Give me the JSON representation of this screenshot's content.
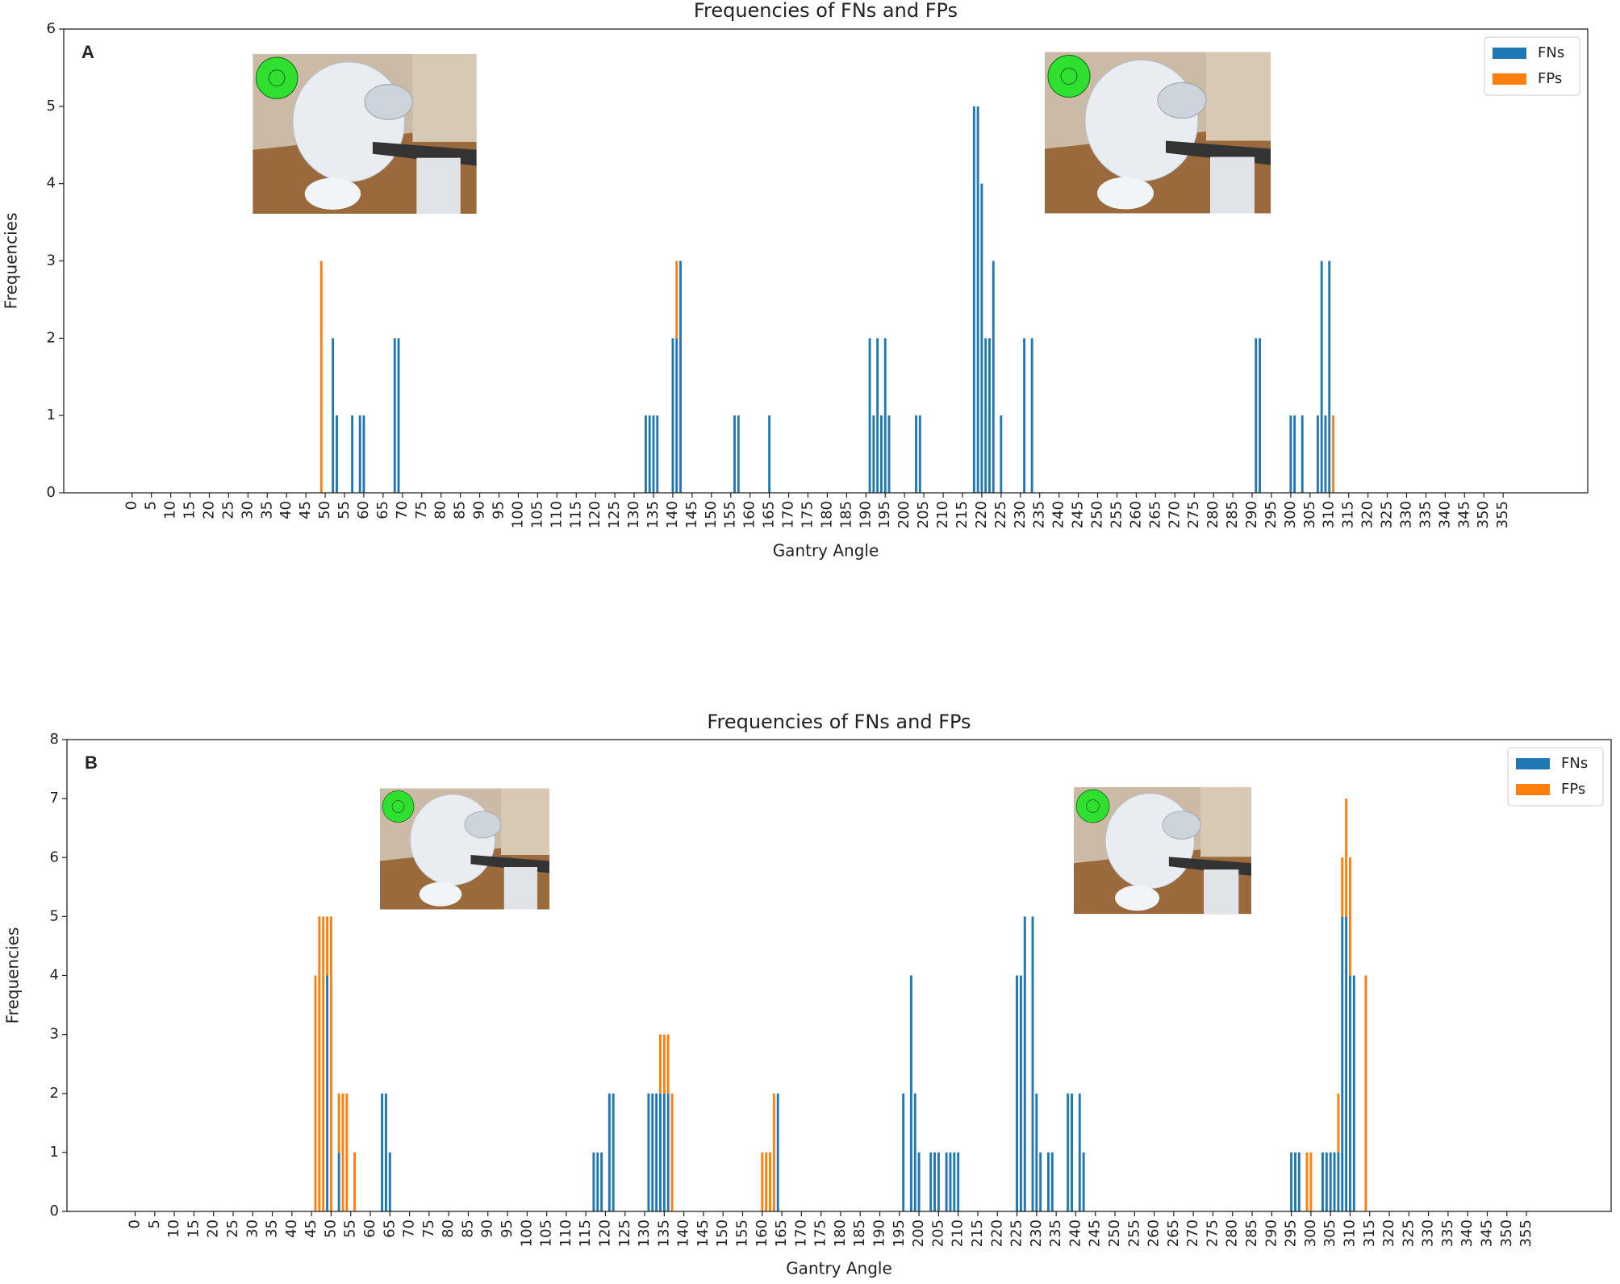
{
  "chart_data": [
    {
      "type": "bar",
      "stacked": true,
      "title": "Frequencies of FNs and FPs",
      "panel_label": "A",
      "xlabel": "Gantry Angle",
      "ylabel": "Frequencies",
      "legend": "upper right",
      "x": [
        49,
        52,
        53,
        57,
        59,
        60,
        68,
        69,
        133,
        134,
        135,
        136,
        140,
        141,
        142,
        156,
        157,
        165,
        191,
        192,
        193,
        194,
        195,
        196,
        203,
        204,
        218,
        219,
        220,
        221,
        222,
        223,
        225,
        231,
        233,
        291,
        292,
        300,
        301,
        303,
        307,
        308,
        309,
        310,
        311
      ],
      "series": [
        {
          "name": "FNs",
          "color": "#1f77b4",
          "values": [
            0,
            2,
            1,
            1,
            1,
            1,
            2,
            2,
            1,
            1,
            1,
            1,
            2,
            2,
            3,
            1,
            1,
            1,
            2,
            1,
            2,
            1,
            2,
            1,
            1,
            1,
            5,
            5,
            4,
            2,
            2,
            3,
            1,
            2,
            2,
            2,
            2,
            1,
            1,
            1,
            1,
            3,
            1,
            3,
            0
          ]
        },
        {
          "name": "FPs",
          "color": "#ff7f0e",
          "values": [
            3,
            0,
            0,
            0,
            0,
            0,
            0,
            0,
            0,
            0,
            0,
            0,
            0,
            1,
            0,
            0,
            0,
            0,
            0,
            0,
            0,
            0,
            0,
            0,
            0,
            0,
            0,
            0,
            0,
            0,
            0,
            0,
            0,
            0,
            0,
            0,
            0,
            0,
            0,
            0,
            0,
            0,
            0,
            0,
            1
          ]
        }
      ],
      "xlim": [
        -17.7,
        376.9
      ],
      "ylim": [
        0,
        6
      ],
      "yticks": [
        0,
        1,
        2,
        3,
        4,
        5,
        6
      ],
      "xticks": [
        0,
        5,
        10,
        15,
        20,
        25,
        30,
        35,
        40,
        45,
        50,
        55,
        60,
        65,
        70,
        75,
        80,
        85,
        90,
        95,
        100,
        105,
        110,
        115,
        120,
        125,
        130,
        135,
        140,
        145,
        150,
        155,
        160,
        165,
        170,
        175,
        180,
        185,
        190,
        195,
        200,
        205,
        210,
        215,
        220,
        225,
        230,
        235,
        240,
        245,
        250,
        255,
        260,
        265,
        270,
        275,
        280,
        285,
        290,
        295,
        300,
        305,
        310,
        315,
        320,
        325,
        330,
        335,
        340,
        345,
        350,
        355
      ]
    },
    {
      "type": "bar",
      "stacked": true,
      "title": "Frequencies of FNs and FPs",
      "panel_label": "B",
      "xlabel": "Gantry Angle",
      "ylabel": "Frequencies",
      "legend": "upper right",
      "x": [
        46,
        47,
        48,
        49,
        50,
        52,
        53,
        54,
        56,
        63,
        64,
        65,
        117,
        118,
        119,
        121,
        122,
        131,
        132,
        133,
        134,
        135,
        136,
        137,
        160,
        161,
        162,
        163,
        164,
        196,
        198,
        199,
        200,
        203,
        204,
        205,
        207,
        208,
        209,
        210,
        225,
        226,
        227,
        229,
        230,
        231,
        233,
        234,
        238,
        239,
        241,
        242,
        295,
        296,
        297,
        299,
        300,
        303,
        304,
        305,
        306,
        307,
        308,
        309,
        310,
        311,
        314
      ],
      "series": [
        {
          "name": "FNs",
          "color": "#1f77b4",
          "values": [
            0,
            0,
            0,
            4,
            0,
            1,
            0,
            0,
            0,
            2,
            2,
            1,
            1,
            1,
            1,
            2,
            2,
            2,
            2,
            2,
            2,
            2,
            2,
            0,
            0,
            0,
            0,
            0,
            2,
            2,
            4,
            2,
            1,
            1,
            1,
            1,
            1,
            1,
            1,
            1,
            4,
            4,
            5,
            5,
            2,
            1,
            1,
            1,
            2,
            2,
            2,
            1,
            1,
            1,
            1,
            0,
            0,
            1,
            1,
            1,
            1,
            1,
            5,
            5,
            4,
            4,
            0
          ]
        },
        {
          "name": "FPs",
          "color": "#ff7f0e",
          "values": [
            4,
            5,
            5,
            1,
            5,
            1,
            2,
            2,
            1,
            0,
            0,
            0,
            0,
            0,
            0,
            0,
            0,
            0,
            0,
            0,
            1,
            1,
            1,
            2,
            1,
            1,
            1,
            2,
            0,
            0,
            0,
            0,
            0,
            0,
            0,
            0,
            0,
            0,
            0,
            0,
            0,
            0,
            0,
            0,
            0,
            0,
            0,
            0,
            0,
            0,
            0,
            0,
            0,
            0,
            0,
            1,
            1,
            0,
            0,
            0,
            0,
            1,
            1,
            2,
            2,
            0,
            4
          ]
        }
      ],
      "xlim": [
        -17.4,
        376.6
      ],
      "ylim": [
        0,
        8
      ],
      "yticks": [
        0,
        1,
        2,
        3,
        4,
        5,
        6,
        7,
        8
      ],
      "xticks": [
        0,
        5,
        10,
        15,
        20,
        25,
        30,
        35,
        40,
        45,
        50,
        55,
        60,
        65,
        70,
        75,
        80,
        85,
        90,
        95,
        100,
        105,
        110,
        115,
        120,
        125,
        130,
        135,
        140,
        145,
        150,
        155,
        160,
        165,
        170,
        175,
        180,
        185,
        190,
        195,
        200,
        205,
        210,
        215,
        220,
        225,
        230,
        235,
        240,
        245,
        250,
        255,
        260,
        265,
        270,
        275,
        280,
        285,
        290,
        295,
        300,
        305,
        310,
        315,
        320,
        325,
        330,
        335,
        340,
        345,
        350,
        355
      ]
    }
  ]
}
